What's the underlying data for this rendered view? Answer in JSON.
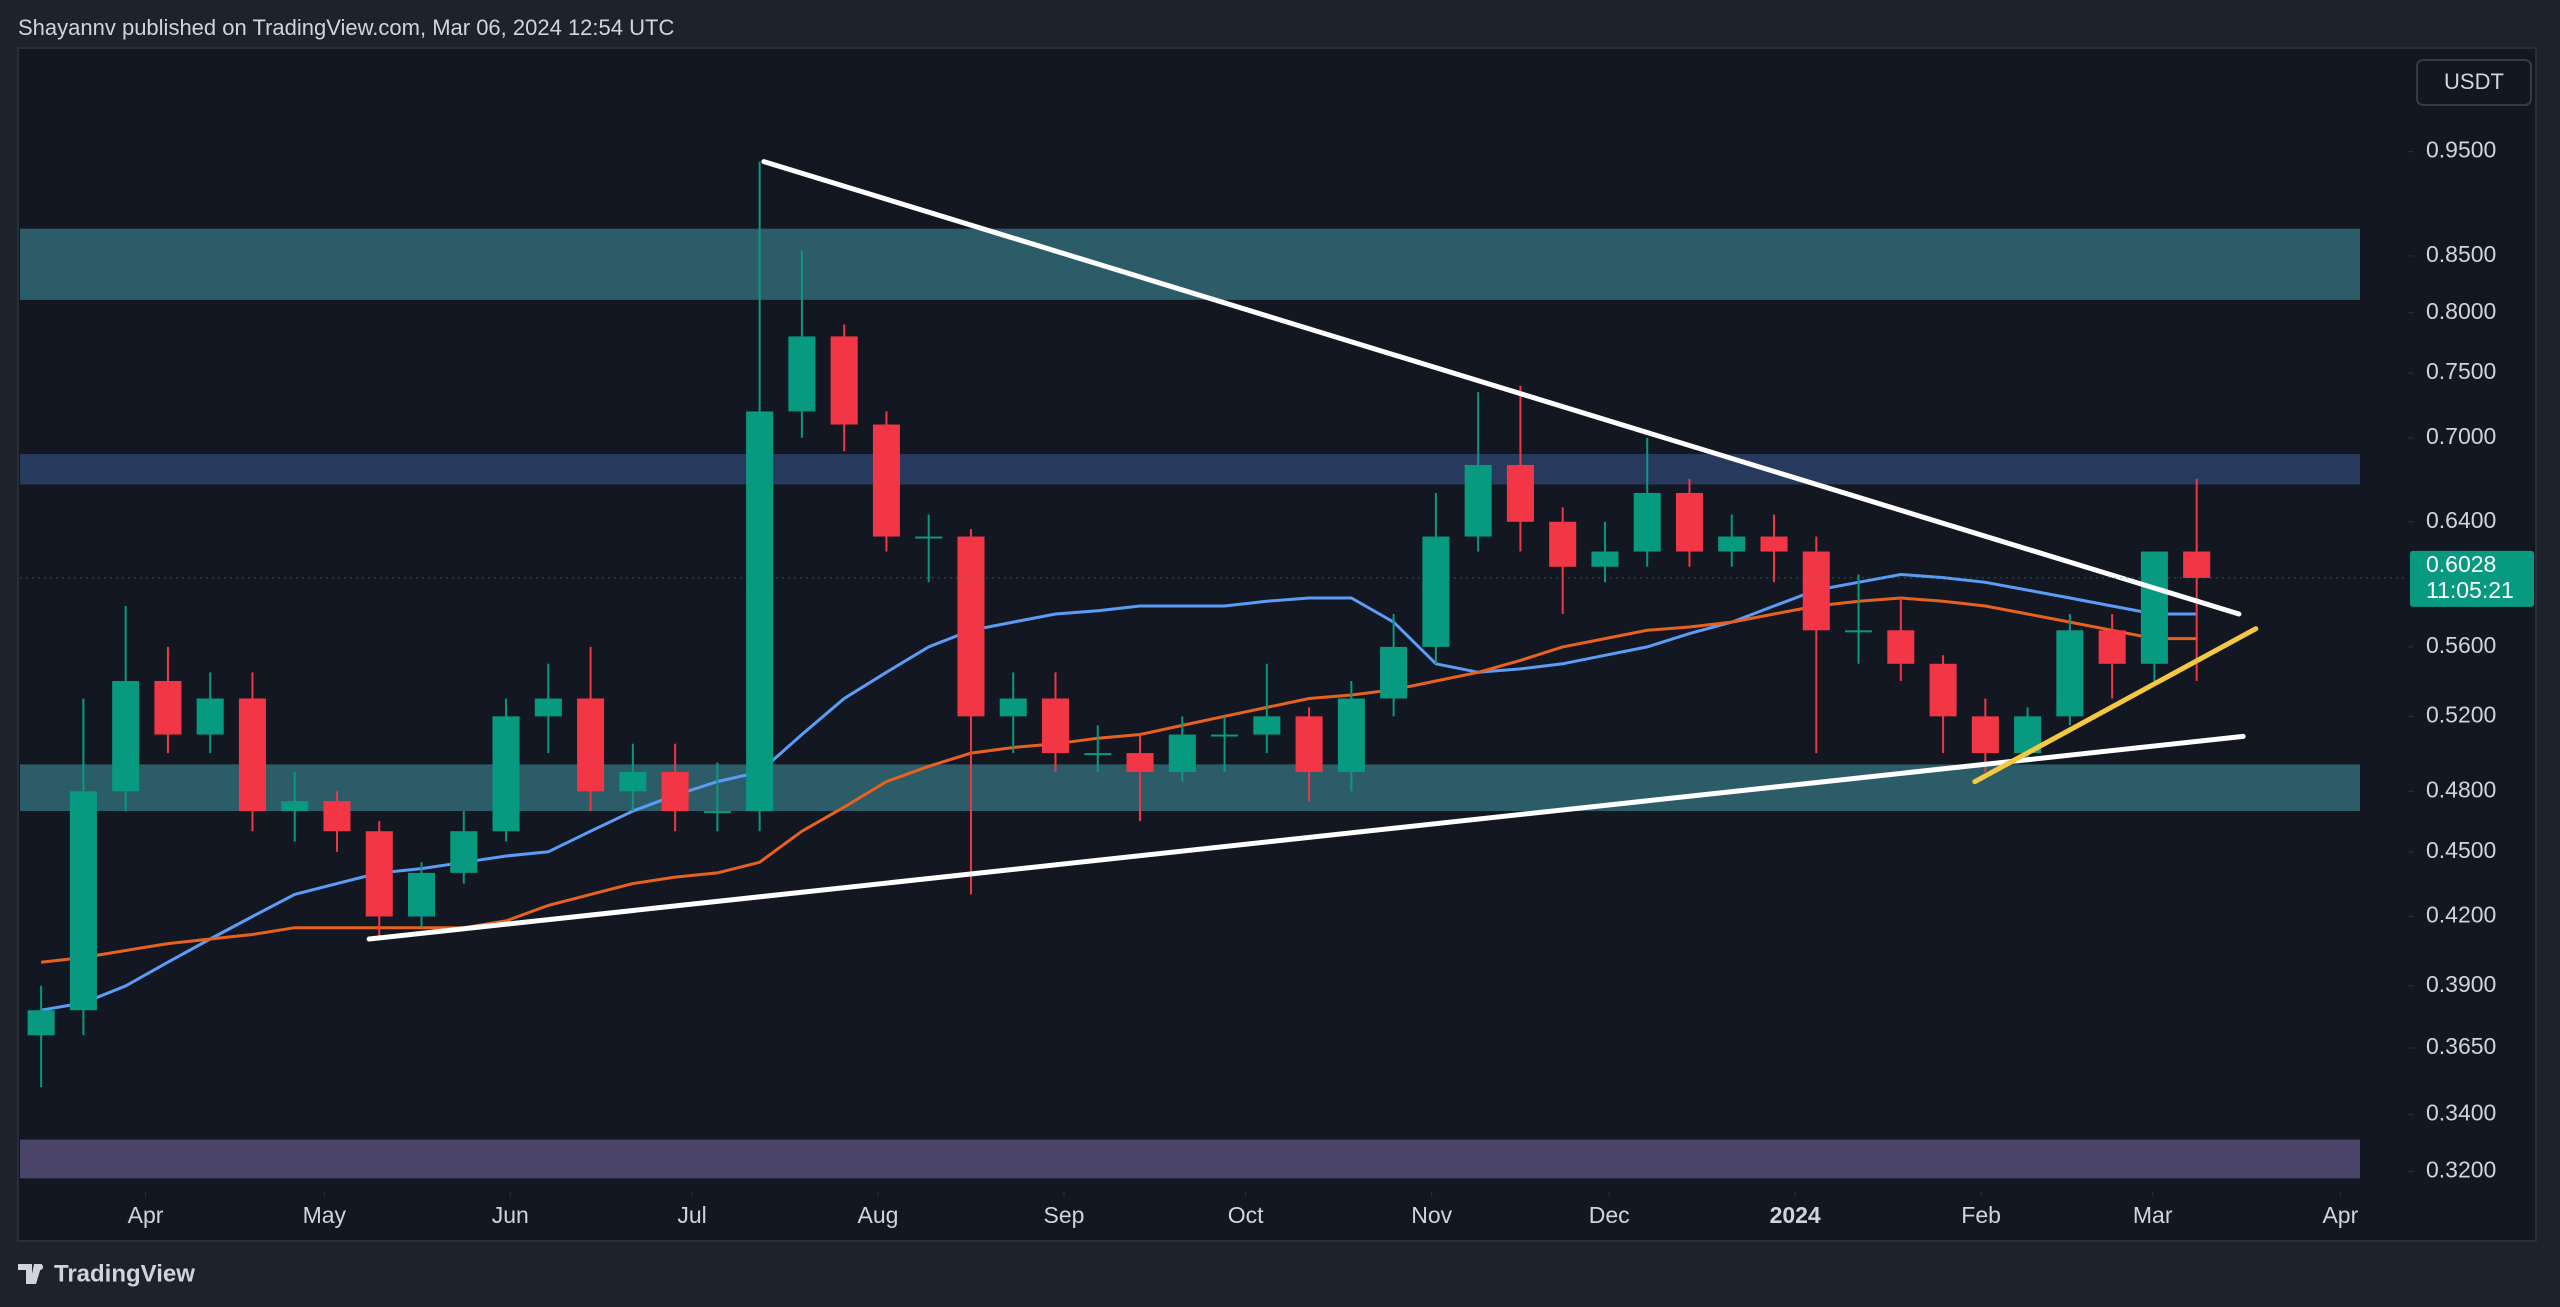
{
  "header": {
    "title": "Shayannv published on TradingView.com, Mar 06, 2024 12:54 UTC"
  },
  "currency_button": "USDT",
  "footer": {
    "brand": "TradingView"
  },
  "chart_data": {
    "type": "candlestick",
    "log_scale": true,
    "up_color": "#089981",
    "down_color": "#f23645",
    "categories": [
      null,
      null,
      null,
      null,
      null,
      null,
      null,
      null,
      null,
      null,
      null,
      null,
      null,
      null,
      null,
      null,
      null,
      null,
      null,
      null,
      null,
      null,
      null,
      null,
      null,
      null,
      null,
      null,
      null,
      null,
      null,
      null,
      null,
      null,
      null,
      null,
      null,
      null,
      null,
      null,
      null,
      null,
      null,
      null,
      null,
      null,
      null,
      null,
      null,
      null,
      null,
      null
    ],
    "open": [
      0.37,
      0.38,
      0.48,
      0.54,
      0.51,
      0.53,
      0.47,
      0.475,
      0.46,
      0.42,
      0.44,
      0.46,
      0.52,
      0.53,
      0.48,
      0.49,
      0.47,
      0.47,
      0.72,
      0.78,
      0.71,
      0.63,
      0.63,
      0.52,
      0.53,
      0.5,
      0.5,
      0.49,
      0.51,
      0.51,
      0.52,
      0.49,
      0.53,
      0.56,
      0.63,
      0.68,
      0.64,
      0.61,
      0.62,
      0.66,
      0.62,
      0.63,
      0.62,
      0.57,
      0.57,
      0.55,
      0.52,
      0.5,
      0.52,
      0.57,
      0.55,
      0.62
    ],
    "high": [
      0.39,
      0.53,
      0.585,
      0.56,
      0.545,
      0.545,
      0.49,
      0.48,
      0.465,
      0.445,
      0.47,
      0.53,
      0.55,
      0.56,
      0.505,
      0.505,
      0.495,
      0.94,
      0.855,
      0.79,
      0.72,
      0.645,
      0.635,
      0.545,
      0.545,
      0.515,
      0.51,
      0.52,
      0.52,
      0.55,
      0.525,
      0.54,
      0.58,
      0.66,
      0.735,
      0.74,
      0.65,
      0.64,
      0.7,
      0.67,
      0.645,
      0.645,
      0.63,
      0.605,
      0.59,
      0.555,
      0.53,
      0.525,
      0.58,
      0.58,
      0.62,
      0.67
    ],
    "low": [
      0.35,
      0.37,
      0.47,
      0.5,
      0.5,
      0.46,
      0.455,
      0.45,
      0.41,
      0.415,
      0.435,
      0.455,
      0.5,
      0.47,
      0.47,
      0.46,
      0.46,
      0.46,
      0.7,
      0.69,
      0.62,
      0.6,
      0.43,
      0.5,
      0.49,
      0.49,
      0.465,
      0.485,
      0.49,
      0.5,
      0.475,
      0.48,
      0.52,
      0.55,
      0.62,
      0.62,
      0.58,
      0.6,
      0.61,
      0.61,
      0.61,
      0.6,
      0.5,
      0.55,
      0.54,
      0.5,
      0.49,
      0.495,
      0.515,
      0.53,
      0.54,
      0.54
    ],
    "close": [
      0.38,
      0.48,
      0.54,
      0.51,
      0.53,
      0.47,
      0.475,
      0.46,
      0.42,
      0.44,
      0.46,
      0.52,
      0.53,
      0.48,
      0.49,
      0.47,
      0.47,
      0.72,
      0.78,
      0.71,
      0.63,
      0.63,
      0.52,
      0.53,
      0.5,
      0.5,
      0.49,
      0.51,
      0.51,
      0.52,
      0.49,
      0.53,
      0.56,
      0.63,
      0.68,
      0.64,
      0.61,
      0.62,
      0.66,
      0.62,
      0.63,
      0.62,
      0.57,
      0.57,
      0.55,
      0.52,
      0.5,
      0.52,
      0.57,
      0.55,
      0.62,
      0.6028
    ],
    "moving_averages": [
      {
        "color": "#5b9cf6",
        "values": [
          0.38,
          0.383,
          0.39,
          0.4,
          0.41,
          0.42,
          0.43,
          0.435,
          0.44,
          0.442,
          0.445,
          0.448,
          0.45,
          0.46,
          0.47,
          0.478,
          0.485,
          0.49,
          0.51,
          0.53,
          0.545,
          0.56,
          0.57,
          0.575,
          0.58,
          0.582,
          0.585,
          0.585,
          0.585,
          0.588,
          0.59,
          0.59,
          0.575,
          0.55,
          0.545,
          0.547,
          0.55,
          0.555,
          0.56,
          0.568,
          0.575,
          0.585,
          0.595,
          0.6,
          0.605,
          0.603,
          0.6,
          0.595,
          0.59,
          0.585,
          0.58,
          0.58
        ]
      },
      {
        "color": "#e8621e",
        "values": [
          0.4,
          0.402,
          0.405,
          0.408,
          0.41,
          0.412,
          0.415,
          0.415,
          0.415,
          0.415,
          0.415,
          0.418,
          0.425,
          0.43,
          0.435,
          0.438,
          0.44,
          0.445,
          0.46,
          0.472,
          0.485,
          0.493,
          0.5,
          0.503,
          0.505,
          0.508,
          0.51,
          0.515,
          0.52,
          0.525,
          0.53,
          0.532,
          0.535,
          0.54,
          0.545,
          0.552,
          0.56,
          0.565,
          0.57,
          0.572,
          0.575,
          0.58,
          0.585,
          0.588,
          0.59,
          0.588,
          0.585,
          0.58,
          0.575,
          0.57,
          0.565,
          0.565
        ]
      }
    ],
    "zones": [
      {
        "low": 0.811,
        "high": 0.875,
        "color": "#2c5c68"
      },
      {
        "low": 0.666,
        "high": 0.688,
        "color": "#273a5e"
      },
      {
        "low": 0.47,
        "high": 0.494,
        "color": "#2c5c68"
      },
      {
        "low": 0.3176,
        "high": 0.331,
        "color": "#4a4568"
      }
    ],
    "trendlines": [
      {
        "x": [
          17.1,
          52.0
        ],
        "y": [
          0.94,
          0.58
        ],
        "color": "#ffffff"
      },
      {
        "x": [
          7.76,
          52.1
        ],
        "y": [
          0.41,
          0.509
        ],
        "color": "#ffffff"
      },
      {
        "x": [
          45.75,
          52.4
        ],
        "y": [
          0.485,
          0.571
        ],
        "color": "#f5c842"
      }
    ],
    "xlim": [
      -0.5,
      56
    ],
    "xticks": [
      {
        "value": 2.47,
        "label": "Apr"
      },
      {
        "value": 6.7,
        "label": "May"
      },
      {
        "value": 11.1,
        "label": "Jun"
      },
      {
        "value": 15.4,
        "label": "Jul"
      },
      {
        "value": 19.8,
        "label": "Aug"
      },
      {
        "value": 24.2,
        "label": "Sep"
      },
      {
        "value": 28.5,
        "label": "Oct"
      },
      {
        "value": 32.9,
        "label": "Nov"
      },
      {
        "value": 37.1,
        "label": "Dec"
      },
      {
        "value": 41.5,
        "label": "2024"
      },
      {
        "value": 45.9,
        "label": "Feb"
      },
      {
        "value": 49.96,
        "label": "Mar"
      },
      {
        "value": 54.4,
        "label": "Apr"
      }
    ],
    "ylim": [
      0.313,
      1.06
    ],
    "yticks": [
      {
        "value": 0.95,
        "label": "0.9500"
      },
      {
        "value": 0.85,
        "label": "0.8500"
      },
      {
        "value": 0.8,
        "label": "0.8000"
      },
      {
        "value": 0.75,
        "label": "0.7500"
      },
      {
        "value": 0.7,
        "label": "0.7000"
      },
      {
        "value": 0.64,
        "label": "0.6400"
      },
      {
        "value": 0.56,
        "label": "0.5600"
      },
      {
        "value": 0.52,
        "label": "0.5200"
      },
      {
        "value": 0.48,
        "label": "0.4800"
      },
      {
        "value": 0.45,
        "label": "0.4500"
      },
      {
        "value": 0.42,
        "label": "0.4200"
      },
      {
        "value": 0.39,
        "label": "0.3900"
      },
      {
        "value": 0.365,
        "label": "0.3650"
      },
      {
        "value": 0.34,
        "label": "0.3400"
      },
      {
        "value": 0.32,
        "label": "0.3200"
      }
    ],
    "price_label": {
      "value": 0.6028,
      "countdown": "11:05:21",
      "color": "#089981"
    }
  }
}
